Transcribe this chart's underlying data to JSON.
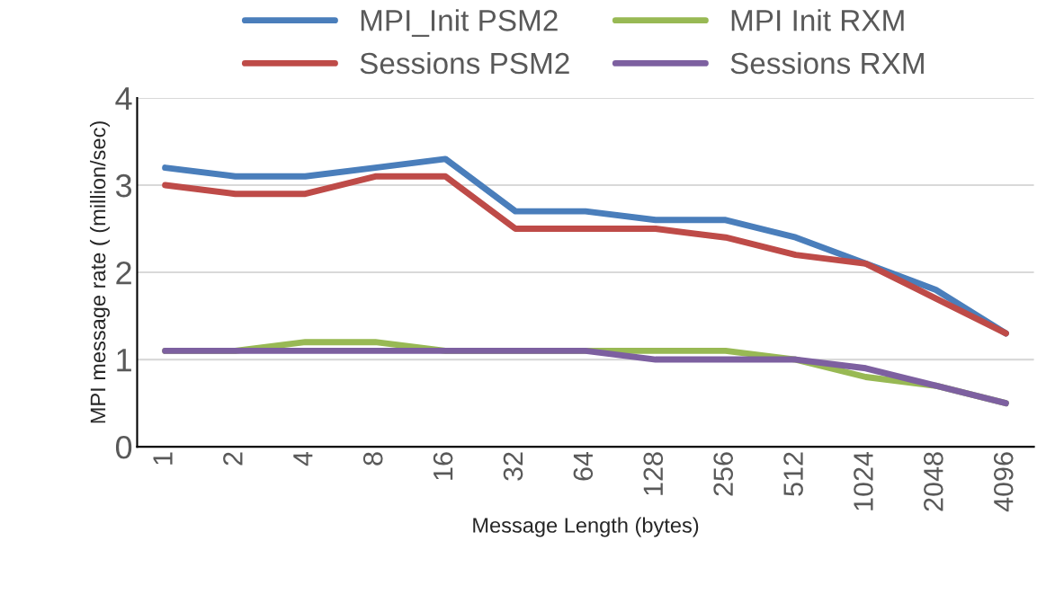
{
  "chart_data": {
    "type": "line",
    "xlabel": "Message Length (bytes)",
    "ylabel": "MPI message rate ( (million/sec)",
    "categories": [
      "1",
      "2",
      "4",
      "8",
      "16",
      "32",
      "64",
      "128",
      "256",
      "512",
      "1024",
      "2048",
      "4096"
    ],
    "series": [
      {
        "name": "MPI_Init PSM2",
        "color": "#4a7ebb",
        "values": [
          3.2,
          3.1,
          3.1,
          3.2,
          3.3,
          2.7,
          2.7,
          2.6,
          2.6,
          2.4,
          2.1,
          1.8,
          1.3
        ]
      },
      {
        "name": "Sessions PSM2",
        "color": "#be4b48",
        "values": [
          3.0,
          2.9,
          2.9,
          3.1,
          3.1,
          2.5,
          2.5,
          2.5,
          2.4,
          2.2,
          2.1,
          1.7,
          1.3
        ]
      },
      {
        "name": "MPI Init RXM",
        "color": "#98b954",
        "values": [
          1.1,
          1.1,
          1.2,
          1.2,
          1.1,
          1.1,
          1.1,
          1.1,
          1.1,
          1.0,
          0.8,
          0.7,
          0.5
        ]
      },
      {
        "name": "Sessions RXM",
        "color": "#7d60a0",
        "values": [
          1.1,
          1.1,
          1.1,
          1.1,
          1.1,
          1.1,
          1.1,
          1.0,
          1.0,
          1.0,
          0.9,
          0.7,
          0.5
        ]
      }
    ],
    "ylim": [
      0,
      4
    ],
    "yticks": [
      0,
      1,
      2,
      3,
      4
    ],
    "grid": "y",
    "legend": "top",
    "marker": "none",
    "line_style": "solid"
  }
}
